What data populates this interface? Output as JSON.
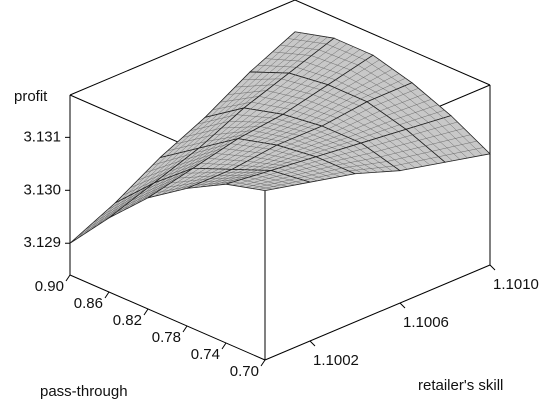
{
  "chart_data": {
    "type": "surface",
    "xlabel": "retailer's skill",
    "ylabel": "pass-through",
    "zlabel": "profit",
    "x": [
      1.1,
      1.1002,
      1.1004,
      1.1006,
      1.1008,
      1.101
    ],
    "y": [
      0.7,
      0.74,
      0.78,
      0.82,
      0.86,
      0.9
    ],
    "z": [
      [
        3.1316,
        3.1314,
        3.1312,
        3.1309,
        3.1307,
        3.1305
      ],
      [
        3.1314,
        3.1313,
        3.1312,
        3.1311,
        3.131,
        3.1309
      ],
      [
        3.131,
        3.131,
        3.1311,
        3.1311,
        3.1312,
        3.1312
      ],
      [
        3.1305,
        3.1307,
        3.1309,
        3.131,
        3.1312,
        3.1314
      ],
      [
        3.1298,
        3.1301,
        3.1304,
        3.1308,
        3.1311,
        3.1314
      ],
      [
        3.129,
        3.1294,
        3.1299,
        3.1303,
        3.1308,
        3.1312
      ]
    ],
    "xlim": [
      1.1,
      1.101
    ],
    "ylim": [
      0.7,
      0.9
    ],
    "zlim": [
      3.1284,
      3.1318
    ],
    "xticks": [
      1.1002,
      1.1006,
      {
        "value": 1.101,
        "label": "1.1010"
      }
    ],
    "yticks": [
      {
        "value": 0.7,
        "label": "0.70"
      },
      0.74,
      0.78,
      0.82,
      0.86,
      {
        "value": 0.9,
        "label": "0.90"
      }
    ],
    "zticks": [
      3.129,
      {
        "value": 3.13,
        "label": "3.130"
      },
      3.131
    ],
    "color": "#c8c8c8"
  }
}
